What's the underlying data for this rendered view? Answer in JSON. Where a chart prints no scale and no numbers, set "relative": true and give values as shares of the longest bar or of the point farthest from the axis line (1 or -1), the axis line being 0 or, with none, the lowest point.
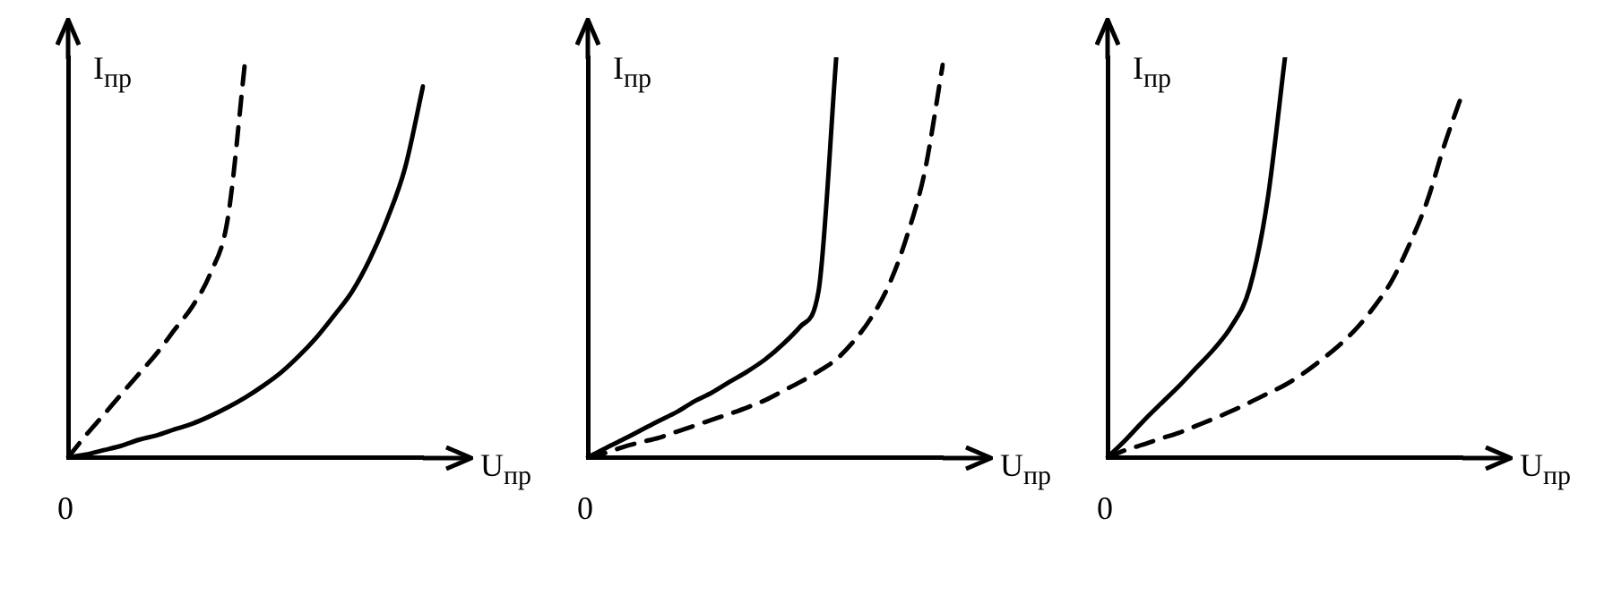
{
  "chart_data": [
    {
      "type": "line",
      "relative": true,
      "xlabel": "U$_{пр}$",
      "ylabel": "I$_{пр}$",
      "annotations": [
        "0"
      ],
      "grid": false,
      "legend": false,
      "marker": "none",
      "categories": [
        null,
        null,
        null,
        null,
        null,
        null,
        null,
        null,
        null,
        null,
        null,
        null,
        null,
        null,
        null,
        null,
        null,
        null,
        null,
        null,
        null
      ],
      "series": [
        {
          "color": "#000000",
          "line_style": "solid",
          "values": [
            0,
            0.007,
            0.018,
            0.029,
            0.044,
            0.055,
            0.07,
            0.084,
            0.103,
            0.125,
            0.15,
            0.179,
            0.212,
            0.253,
            0.3,
            0.355,
            0.414,
            0.495,
            0.597,
            0.725,
            0.927
          ]
        },
        {
          "color": "#000000",
          "line_style": "dashed",
          "values": [
            0,
            0.055,
            0.106,
            0.158,
            0.209,
            0.26,
            0.319,
            0.377,
            0.458,
            0.597,
            1,
            null,
            null,
            null,
            null,
            null,
            null,
            null,
            null,
            null,
            null
          ]
        }
      ]
    },
    {
      "type": "line",
      "relative": true,
      "xlabel": "U$_{пр}$",
      "ylabel": "I$_{пр}$",
      "annotations": [
        "0"
      ],
      "grid": false,
      "legend": false,
      "marker": "none",
      "categories": [
        null,
        null,
        null,
        null,
        null,
        null,
        null,
        null,
        null,
        null,
        null,
        null,
        null,
        null,
        null,
        null,
        null,
        null,
        null,
        null,
        null
      ],
      "series": [
        {
          "color": "#000000",
          "line_style": "solid",
          "values": [
            0,
            0.023,
            0.045,
            0.068,
            0.091,
            0.113,
            0.14,
            0.162,
            0.189,
            0.215,
            0.245,
            0.283,
            0.328,
            0.415,
            1,
            null,
            null,
            null,
            null,
            null,
            null
          ]
        },
        {
          "color": "#000000",
          "line_style": "dashed",
          "values": [
            0,
            0.011,
            0.026,
            0.038,
            0.049,
            0.064,
            0.079,
            0.094,
            0.109,
            0.125,
            0.143,
            0.166,
            0.189,
            0.215,
            0.245,
            0.291,
            0.351,
            0.434,
            0.555,
            0.717,
            0.981
          ]
        }
      ]
    },
    {
      "type": "line",
      "relative": true,
      "xlabel": "U$_{пр}$",
      "ylabel": "I$_{пр}$",
      "annotations": [
        "0"
      ],
      "grid": false,
      "legend": false,
      "marker": "none",
      "categories": [
        null,
        null,
        null,
        null,
        null,
        null,
        null,
        null,
        null,
        null,
        null,
        null,
        null,
        null,
        null,
        null,
        null,
        null,
        null,
        null,
        null
      ],
      "series": [
        {
          "color": "#000000",
          "line_style": "solid",
          "values": [
            0,
            0.043,
            0.09,
            0.134,
            0.177,
            0.224,
            0.271,
            0.329,
            0.422,
            0.639,
            1,
            null,
            null,
            null,
            null,
            null,
            null,
            null,
            null,
            null,
            null
          ]
        },
        {
          "color": "#000000",
          "line_style": "dashed",
          "values": [
            0,
            0.018,
            0.032,
            0.047,
            0.061,
            0.079,
            0.097,
            0.116,
            0.137,
            0.159,
            0.181,
            0.209,
            0.242,
            0.278,
            0.321,
            0.375,
            0.44,
            0.531,
            0.639,
            0.783,
            0.91
          ]
        }
      ]
    }
  ]
}
